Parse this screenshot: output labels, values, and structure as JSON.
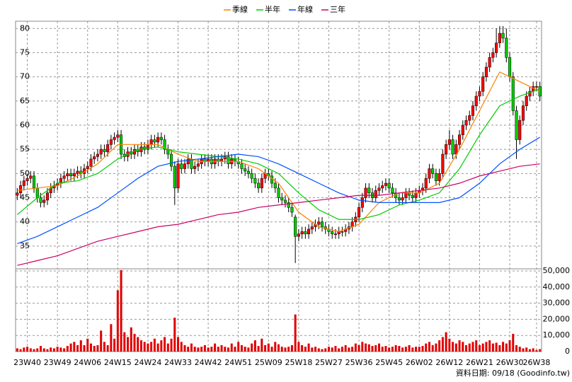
{
  "chart_data": [
    {
      "type": "candlestick",
      "legend": "top",
      "grid": true,
      "up_color": "#ff0000",
      "down_color": "#00cc00",
      "ylim": [
        30.3,
        81.5
      ],
      "yticks": [
        35,
        40,
        45,
        50,
        55,
        60,
        65,
        70,
        75,
        80
      ],
      "open": [
        45.5,
        46,
        47.5,
        48.5,
        49,
        49.5,
        47,
        45,
        44,
        44.5,
        46,
        47,
        47.5,
        48,
        49,
        49.5,
        50,
        49.5,
        50,
        50.5,
        50,
        51,
        51.5,
        53,
        53.5,
        54,
        55,
        54.5,
        56,
        57,
        57.5,
        58,
        54,
        53.5,
        54.5,
        54,
        55,
        54.5,
        55.5,
        55,
        56,
        57,
        56.5,
        57.5,
        57,
        55,
        54,
        51.5,
        47,
        52,
        51,
        52,
        53,
        51,
        51.5,
        52,
        53,
        52.5,
        53,
        52,
        53,
        52.5,
        53,
        53.5,
        52,
        53,
        52.5,
        52,
        51,
        50.5,
        50,
        49,
        48,
        47,
        49,
        50,
        49.5,
        48,
        47,
        45,
        44.5,
        44,
        43,
        41,
        37,
        37.5,
        38,
        37.5,
        38.5,
        39,
        39.5,
        40,
        39,
        38.5,
        38,
        37.5,
        37.5,
        38,
        38,
        38.5,
        39,
        40,
        41,
        43,
        45,
        47,
        46,
        45,
        46.5,
        47,
        47.5,
        48,
        47,
        46,
        45,
        44.5,
        45,
        46,
        45.5,
        45,
        46,
        46.5,
        47,
        49,
        51,
        50,
        48.5,
        50,
        54,
        56,
        57,
        54,
        56,
        58,
        60,
        61,
        62,
        64,
        66,
        67,
        70,
        72,
        74,
        75,
        77,
        79,
        78,
        74,
        70,
        63,
        57,
        61,
        64,
        66,
        67,
        68,
        68
      ],
      "high": [
        47,
        48.5,
        49.5,
        50,
        50.5,
        50.5,
        48,
        46,
        45.5,
        47,
        48,
        48.5,
        49,
        50,
        50.5,
        51,
        51,
        51,
        51.5,
        51.5,
        52,
        52.5,
        54,
        54.5,
        55,
        56,
        56,
        57,
        58,
        58.5,
        59,
        59,
        55,
        55.5,
        55.5,
        56,
        56,
        56.5,
        56.5,
        57,
        58,
        58,
        58.5,
        58.5,
        58,
        56,
        55,
        52.5,
        53,
        53,
        53,
        54,
        54,
        52.5,
        53,
        54,
        54,
        54,
        54,
        54,
        54,
        54,
        54.5,
        54.5,
        54,
        54,
        53.5,
        53,
        52,
        51.5,
        51,
        50,
        49,
        50,
        51,
        51,
        50.5,
        49,
        48,
        46,
        45.5,
        45,
        44,
        41.5,
        38.5,
        39,
        39,
        39.5,
        40,
        40.5,
        41,
        41,
        40,
        39.5,
        39,
        38.5,
        39,
        39,
        39.5,
        40,
        41,
        42,
        44,
        46,
        48,
        48,
        47,
        47.5,
        48,
        48.5,
        49,
        49,
        48,
        47,
        46,
        46,
        47,
        47,
        46.5,
        47,
        47.5,
        48,
        50,
        52,
        52,
        51,
        51,
        55,
        57,
        59,
        58,
        57,
        59,
        61,
        62,
        63,
        65,
        67,
        68,
        71,
        73,
        75,
        76,
        80,
        80.5,
        80.5,
        80,
        75,
        71,
        64,
        62,
        65,
        67,
        68,
        69,
        69,
        69
      ],
      "low": [
        44.5,
        45,
        46.5,
        47.5,
        48,
        46,
        44,
        43,
        43,
        43.5,
        45,
        46,
        46.5,
        47,
        48,
        48.5,
        48.5,
        48.5,
        49,
        49,
        49,
        50,
        50.5,
        52,
        52.5,
        53,
        53.5,
        53.5,
        55,
        56,
        56.5,
        53,
        52.5,
        52.5,
        53,
        53,
        53.5,
        53.5,
        54,
        54,
        55,
        55.5,
        55.5,
        56,
        54,
        53,
        50.5,
        43.5,
        46,
        50,
        50,
        51,
        50,
        50,
        50.5,
        51,
        51.5,
        51.5,
        51,
        51,
        51.5,
        51.5,
        52,
        51,
        51,
        51.5,
        51,
        50,
        49.5,
        49,
        48,
        47,
        46,
        46,
        48,
        48.5,
        47,
        46,
        44,
        43.5,
        43,
        42,
        41,
        31.5,
        36,
        36.5,
        36.5,
        36.5,
        37.5,
        38,
        38.5,
        38,
        37.5,
        37,
        36.5,
        36.5,
        36.5,
        37,
        37,
        37.5,
        38,
        39,
        40,
        42,
        44,
        45,
        44,
        44,
        45.5,
        46,
        46.5,
        46,
        45,
        44,
        43.5,
        43.5,
        44,
        44.5,
        44,
        44,
        45,
        45.5,
        46,
        48,
        49,
        47.5,
        47.5,
        49,
        53,
        55,
        53,
        53,
        55,
        57,
        59,
        60,
        61,
        63,
        65,
        66,
        69,
        71,
        73,
        74,
        76,
        77,
        73,
        69,
        62,
        53,
        56,
        60,
        63,
        65,
        66,
        67,
        65
      ],
      "close": [
        46,
        47.5,
        48.5,
        49,
        49.5,
        47,
        45,
        44,
        44.5,
        46,
        47,
        47.5,
        48,
        49,
        49.5,
        50,
        49.5,
        50,
        50.5,
        50,
        51,
        51.5,
        53,
        53.5,
        54,
        55,
        54.5,
        56,
        57,
        57.5,
        58,
        54,
        53.5,
        54.5,
        54,
        55,
        54.5,
        55.5,
        55,
        56,
        57,
        56.5,
        57.5,
        57,
        55,
        54,
        51.5,
        47,
        52,
        51,
        52,
        53,
        51,
        51.5,
        52,
        53,
        52.5,
        53,
        52,
        53,
        52.5,
        53,
        53.5,
        52,
        53,
        52.5,
        52,
        51,
        50.5,
        50,
        49,
        48,
        47,
        49,
        50,
        49.5,
        48,
        47,
        45,
        44.5,
        44,
        43,
        42,
        37,
        37.5,
        38,
        37.5,
        38.5,
        39,
        39.5,
        40,
        39,
        38.5,
        38,
        37.5,
        37.5,
        38,
        38,
        38.5,
        39,
        40,
        41,
        43,
        45,
        47,
        46,
        45,
        46.5,
        47,
        47.5,
        48,
        47,
        46,
        45,
        44.5,
        45,
        46,
        45.5,
        45,
        46,
        46.5,
        47,
        49,
        51,
        50,
        48.5,
        50,
        54,
        56,
        57,
        54,
        56,
        58,
        60,
        61,
        62,
        64,
        66,
        67,
        70,
        72,
        74,
        75,
        77,
        79,
        78,
        74,
        70,
        63,
        57,
        61,
        64,
        66,
        67,
        68,
        68,
        66
      ],
      "series": [
        {
          "name": "季線",
          "color": "#ff8000",
          "x": [
            0,
            6,
            12,
            18,
            24,
            30,
            36,
            42,
            48,
            54,
            60,
            66,
            72,
            78,
            84,
            90,
            96,
            102,
            108,
            114,
            120,
            126,
            132,
            138,
            144,
            150,
            156
          ],
          "values": [
            46.5,
            47,
            47.5,
            49.5,
            52,
            56,
            56,
            56,
            54,
            52.5,
            52.5,
            52.5,
            51,
            48,
            42,
            39,
            38,
            39.5,
            44,
            46,
            46,
            48,
            55,
            63,
            71,
            69,
            67
          ]
        },
        {
          "name": "半年",
          "color": "#00cc00",
          "x": [
            0,
            6,
            12,
            18,
            24,
            30,
            36,
            42,
            48,
            54,
            60,
            66,
            72,
            78,
            84,
            90,
            96,
            102,
            108,
            114,
            120,
            126,
            132,
            138,
            144,
            150,
            156
          ],
          "values": [
            41.5,
            45,
            48,
            48.5,
            50,
            53,
            55,
            55.5,
            54.5,
            54,
            53.5,
            53,
            52,
            50,
            46,
            42.5,
            40.5,
            40.5,
            41.5,
            43.5,
            44.5,
            46,
            51,
            58,
            64,
            66,
            67.5
          ]
        },
        {
          "name": "年線",
          "color": "#0050ff",
          "x": [
            0,
            6,
            12,
            18,
            24,
            30,
            36,
            42,
            48,
            54,
            60,
            66,
            72,
            78,
            84,
            90,
            96,
            102,
            108,
            114,
            120,
            126,
            132,
            138,
            144,
            150,
            156
          ],
          "values": [
            35.5,
            37,
            39,
            41,
            43,
            46,
            49,
            51.5,
            52.5,
            53,
            53.5,
            54,
            53.5,
            52,
            50,
            48,
            46,
            44.5,
            44,
            44,
            44,
            44,
            45,
            48,
            52,
            55,
            57.5
          ]
        },
        {
          "name": "三年",
          "color": "#cc0066",
          "x": [
            0,
            6,
            12,
            18,
            24,
            30,
            36,
            42,
            48,
            54,
            60,
            66,
            72,
            78,
            84,
            90,
            96,
            102,
            108,
            114,
            120,
            126,
            132,
            138,
            144,
            150,
            156
          ],
          "values": [
            31,
            32,
            33,
            34.5,
            36,
            37,
            38,
            39,
            39.5,
            40.5,
            41.5,
            42,
            43,
            43.5,
            44,
            44.5,
            45,
            45.5,
            45.5,
            46,
            46.5,
            47,
            48,
            49.5,
            50.5,
            51.5,
            52
          ]
        }
      ]
    },
    {
      "type": "bar",
      "color": "#e00000",
      "grid": true,
      "ylim": [
        0,
        51300
      ],
      "yticks": [
        0,
        {
          "value": 10000,
          "label": "10,000"
        },
        {
          "value": 20000,
          "label": "20,000"
        },
        {
          "value": 30000,
          "label": "30,000"
        },
        {
          "value": 40000,
          "label": "40,000"
        },
        {
          "value": 50000,
          "label": "50,000"
        }
      ],
      "categories": [
        null,
        null,
        null,
        "23W40",
        null,
        null,
        null,
        null,
        null,
        null,
        null,
        null,
        "23W49",
        null,
        null,
        null,
        null,
        null,
        null,
        null,
        null,
        "24W06",
        null,
        null,
        null,
        null,
        null,
        null,
        null,
        null,
        "24W15",
        null,
        null,
        null,
        null,
        null,
        null,
        null,
        null,
        "24W24",
        null,
        null,
        null,
        null,
        null,
        null,
        null,
        null,
        "24W33",
        null,
        null,
        null,
        null,
        null,
        null,
        null,
        null,
        "24W42",
        null,
        null,
        null,
        null,
        null,
        null,
        null,
        null,
        "24W51",
        null,
        null,
        null,
        null,
        null,
        null,
        null,
        null,
        "25W09",
        null,
        null,
        null,
        null,
        null,
        null,
        null,
        null,
        "25W18",
        null,
        null,
        null,
        null,
        null,
        null,
        null,
        null,
        "25W27",
        null,
        null,
        null,
        null,
        null,
        null,
        null,
        null,
        "25W36",
        null,
        null,
        null,
        null,
        null,
        null,
        null,
        null,
        "25W45",
        null,
        null,
        null,
        null,
        null,
        null,
        null,
        null,
        "26W02",
        null,
        null,
        null,
        null,
        null,
        null,
        null,
        null,
        "26W12",
        null,
        null,
        null,
        null,
        null,
        null,
        null,
        null,
        "26W21",
        null,
        null,
        null,
        null,
        null,
        null,
        null,
        null,
        "26W30",
        null,
        null,
        null,
        null,
        null,
        null,
        null,
        "26W38",
        null
      ],
      "values": [
        2000,
        1500,
        2500,
        3000,
        2000,
        1500,
        2000,
        3500,
        2000,
        1500,
        2500,
        2000,
        3000,
        2500,
        2000,
        3500,
        5000,
        6000,
        4000,
        7000,
        4000,
        8000,
        5000,
        3500,
        4000,
        13000,
        6000,
        4000,
        17000,
        8000,
        38000,
        50500,
        12000,
        9000,
        15000,
        11000,
        9000,
        7000,
        6000,
        5000,
        6000,
        8000,
        5000,
        7000,
        9000,
        5000,
        8000,
        21000,
        9000,
        6000,
        4000,
        3000,
        5000,
        3000,
        2500,
        3000,
        4000,
        2500,
        3000,
        5000,
        3000,
        4000,
        3000,
        2500,
        5000,
        3000,
        6000,
        4000,
        3000,
        2500,
        5000,
        7000,
        3500,
        8000,
        4000,
        5000,
        3000,
        6000,
        4500,
        3000,
        2500,
        3000,
        4000,
        23000,
        6000,
        4000,
        3000,
        5000,
        2500,
        3000,
        2000,
        1500,
        2000,
        3000,
        2500,
        3500,
        2000,
        3000,
        4000,
        2500,
        3000,
        5000,
        4000,
        6000,
        5000,
        4500,
        3500,
        4000,
        5000,
        3000,
        3500,
        2500,
        3000,
        4000,
        3500,
        2500,
        3000,
        4000,
        2500,
        3000,
        3000,
        3500,
        5000,
        6000,
        4000,
        5000,
        7000,
        9000,
        12000,
        8000,
        6000,
        5000,
        7000,
        6000,
        4000,
        5000,
        6000,
        7000,
        4000,
        5000,
        6000,
        7000,
        5000,
        5500,
        4000,
        6000,
        5000,
        7000,
        11000,
        4000,
        3000,
        2000,
        2500,
        1500,
        2000,
        1000,
        1500
      ],
      "footer": "資料日期: 09/18 (Goodinfo.tw)"
    }
  ]
}
